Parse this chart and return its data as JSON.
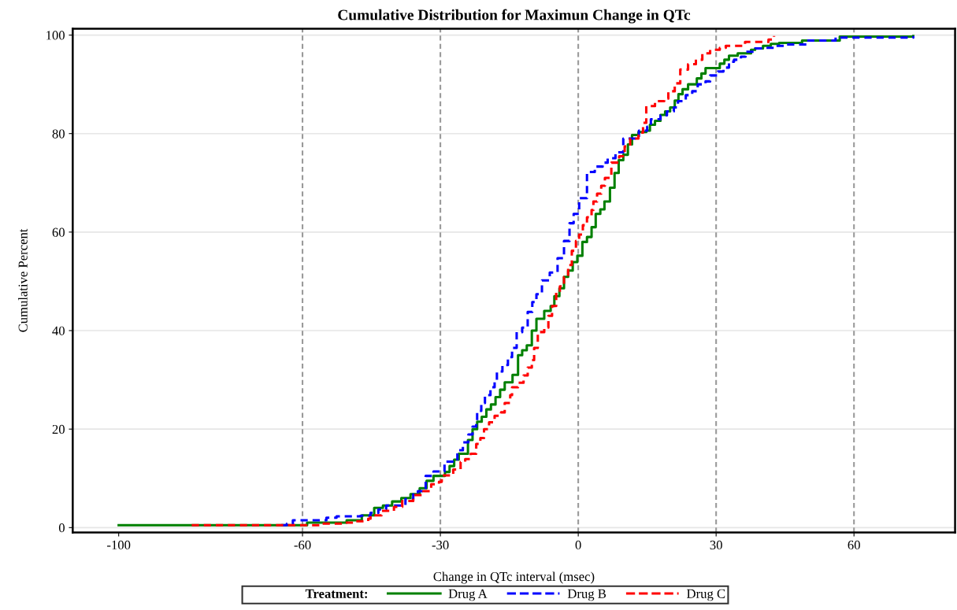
{
  "chart_data": {
    "type": "step",
    "title": "Cumulative Distribution for Maximun Change in QTc",
    "xlabel": "Change in QTc interval (msec)",
    "ylabel": "Cumulative Percent",
    "legend_title": "Treatment:",
    "xlim": [
      -110,
      82
    ],
    "ylim": [
      -1,
      101.3
    ],
    "xticks": [
      -100,
      -60,
      -30,
      0,
      30,
      60
    ],
    "yticks": [
      0,
      20,
      40,
      60,
      80,
      100
    ],
    "grid": "y",
    "legend": "bottom",
    "ref_lines": [
      {
        "axis": "x",
        "value": -60,
        "color": "#999999",
        "line_style": "dashed"
      },
      {
        "axis": "x",
        "value": -30,
        "color": "#999999",
        "line_style": "dashed"
      },
      {
        "axis": "x",
        "value": 0,
        "color": "#999999",
        "line_style": "dashed"
      },
      {
        "axis": "x",
        "value": 30,
        "color": "#999999",
        "line_style": "dashed"
      },
      {
        "axis": "x",
        "value": 60,
        "color": "#999999",
        "line_style": "dashed"
      }
    ],
    "series": [
      {
        "name": "Drug A",
        "color": "#008000",
        "line_style": "solid",
        "x": [
          -100,
          -59,
          -50.4,
          -47.1,
          -44.4,
          -42.5,
          -40.5,
          -38.5,
          -36.5,
          -34.5,
          -33,
          -31.5,
          -29,
          -28,
          -27,
          -26,
          -24,
          -23,
          -22,
          -21,
          -20,
          -19,
          -18,
          -17,
          -16,
          -14.3,
          -13.1,
          -12.2,
          -11.2,
          -10.1,
          -9.1,
          -7.4,
          -6,
          -5.2,
          -4.1,
          -3.1,
          -2.2,
          -1.2,
          -0.2,
          0.9,
          1.9,
          2.9,
          3.8,
          4.8,
          5.7,
          6.9,
          7.9,
          8.8,
          9.8,
          10.8,
          11.7,
          13.1,
          14.8,
          15.6,
          16.7,
          17.9,
          18.9,
          20,
          21,
          21.8,
          22.7,
          23.9,
          25.8,
          26.8,
          27.7,
          30.8,
          31.8,
          32.8,
          34.7,
          37.6,
          38.5,
          40.2,
          41.9,
          43.7,
          48.7,
          56.9,
          72.9
        ],
        "values": [
          0.5,
          1,
          1.5,
          2.5,
          4,
          4.5,
          5.3,
          6,
          6.8,
          8,
          9.5,
          10.5,
          11.3,
          12.5,
          13.8,
          15,
          17.8,
          20,
          21.5,
          22.5,
          24,
          25,
          26.5,
          28,
          29.5,
          31,
          35,
          36,
          37,
          40,
          42.4,
          44,
          45,
          47,
          48.6,
          50.9,
          52.2,
          53.9,
          55.2,
          58,
          59,
          61,
          63.7,
          64.6,
          66.2,
          69,
          72,
          74.6,
          75.7,
          77.8,
          79.7,
          80.3,
          80.6,
          81.8,
          82.6,
          83.8,
          84.5,
          85.3,
          86.7,
          88,
          89,
          90,
          91.2,
          92.2,
          93.3,
          94.2,
          95,
          95.8,
          96.3,
          97,
          97.3,
          97.8,
          98.2,
          98.4,
          98.9,
          99.7,
          99.8
        ]
      },
      {
        "name": "Drug B",
        "color": "#0000ff",
        "line_style": "dashed",
        "x": [
          -64.6,
          -63.4,
          -62.1,
          -54.8,
          -52.6,
          -47.4,
          -45.2,
          -43.5,
          -41.8,
          -37.6,
          -35.9,
          -34.9,
          -33.2,
          -31.5,
          -29.1,
          -26.3,
          -25.1,
          -23.9,
          -23.0,
          -22.2,
          -22.0,
          -21.1,
          -20.3,
          -19.1,
          -18.2,
          -17.7,
          -16.5,
          -15.3,
          -14.4,
          -13.4,
          -12.2,
          -11.0,
          -10.0,
          -9.1,
          -7.9,
          -6.2,
          -4.5,
          -3.1,
          -1.9,
          -1.0,
          0.2,
          1.9,
          3.6,
          5.3,
          6.4,
          8.1,
          9.8,
          13.2,
          15.0,
          15.8,
          17.9,
          19.3,
          20.8,
          21.7,
          23.4,
          24.8,
          26.0,
          27.7,
          28.7,
          30.4,
          31.6,
          32.8,
          33.9,
          35.4,
          36.4,
          38.5,
          40.7,
          43.1,
          44.9,
          49.7,
          56.0,
          72.9
        ],
        "values": [
          0.5,
          0.8,
          1.5,
          2.0,
          2.3,
          2.4,
          3.0,
          3.7,
          4.5,
          5.8,
          7.2,
          7.4,
          10.5,
          11.4,
          13.4,
          15.7,
          17.3,
          18.9,
          20.5,
          21.8,
          23.7,
          25.3,
          26.9,
          28.5,
          29.8,
          31.7,
          33,
          34.6,
          36.5,
          39.7,
          40.6,
          43.8,
          45.8,
          47.4,
          50.2,
          51.8,
          54.7,
          58.2,
          61.8,
          63.7,
          66.9,
          72.2,
          73.3,
          74.1,
          75,
          76.2,
          79,
          80.6,
          81.4,
          82.9,
          83.7,
          84.5,
          85.3,
          86.6,
          87.8,
          88.6,
          90,
          90.6,
          91.8,
          92.6,
          93.4,
          94.6,
          95,
          95.6,
          96.6,
          97.3,
          97.4,
          97.8,
          98.1,
          98.9,
          99.5,
          99.8
        ]
      },
      {
        "name": "Drug C",
        "color": "#ff0000",
        "line_style": "dashed",
        "x": [
          -84.1,
          -56.0,
          -50.9,
          -48.7,
          -45.7,
          -45.2,
          -42.8,
          -40.1,
          -38.3,
          -35.9,
          -33.7,
          -32.0,
          -30.3,
          -29.7,
          -27.2,
          -25.6,
          -24.6,
          -23.4,
          -22.2,
          -21.3,
          -20.5,
          -19.4,
          -18.2,
          -16.8,
          -16.0,
          -14.8,
          -14.4,
          -13.1,
          -11.9,
          -11.0,
          -10.1,
          -9.6,
          -8.8,
          -7.4,
          -6.5,
          -5.7,
          -4.8,
          -4.0,
          -3.1,
          -2.2,
          -1.4,
          -0.5,
          0.2,
          1.0,
          1.9,
          2.9,
          3.3,
          4.1,
          5.0,
          5.8,
          7.2,
          8.9,
          10.1,
          11.3,
          13.1,
          14.1,
          14.8,
          16.7,
          18.7,
          19.6,
          21.0,
          22.2,
          23.9,
          25.6,
          27.0,
          28.7,
          30.8,
          32.1,
          36.3,
          41.4,
          42.6
        ],
        "values": [
          0.5,
          0.8,
          1.0,
          1.3,
          1.8,
          2.5,
          3.4,
          4.2,
          5.4,
          6.6,
          7.4,
          8.8,
          9.3,
          10.6,
          11.8,
          13.3,
          13.9,
          15,
          17,
          18.2,
          20,
          21.4,
          22.7,
          23.4,
          25.3,
          26.9,
          28.5,
          29.4,
          30.9,
          32.5,
          34,
          36.5,
          39.7,
          40.6,
          43,
          45,
          47.7,
          49,
          50.9,
          53.3,
          56.2,
          58.2,
          59.5,
          61.4,
          63,
          64.5,
          66.2,
          67.8,
          69.4,
          71,
          74.1,
          75.4,
          77.4,
          79,
          80.2,
          82.2,
          85.6,
          86.6,
          87.1,
          88.6,
          90.2,
          93,
          94.1,
          95,
          96.3,
          97,
          97.4,
          97.8,
          98.6,
          99.1,
          99.8
        ]
      }
    ]
  }
}
